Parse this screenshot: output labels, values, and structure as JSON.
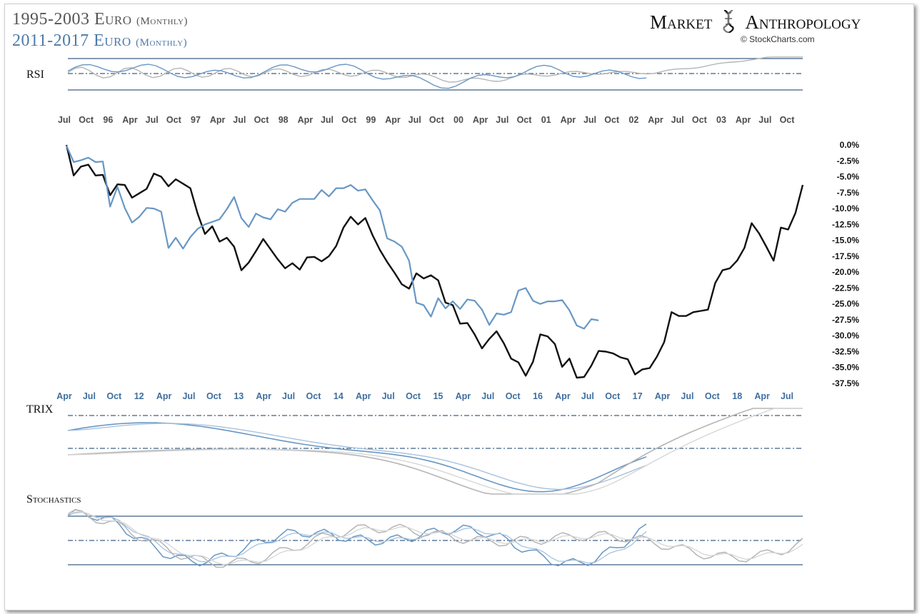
{
  "title_1": "1995-2003 Euro",
  "title_1_sub": "(Monthly)",
  "title_2": "2011-2017  Euro",
  "title_2_sub": "(Monthly)",
  "brand_left": "Market",
  "brand_right": "Anthropology",
  "credit": "© StockCharts.com",
  "panels": {
    "rsi": "RSI",
    "trix": "TRIX",
    "stochastics": "Stochastics"
  },
  "colors": {
    "black_series": "#111111",
    "blue_series": "#6897c4",
    "grid_line": "#3d5f85",
    "top_axis_text": "#4d4d4d",
    "bottom_axis_text": "#3f6e9e",
    "gray_indicator": "#b5b5b5"
  },
  "chart_data": [
    {
      "type": "line",
      "title": "",
      "xlabel": "",
      "ylabel": "",
      "ylim": [
        -37.5,
        0
      ],
      "yticks": [
        "0.0%",
        "-2.5%",
        "-5.0%",
        "-7.5%",
        "-10.0%",
        "-12.5%",
        "-15.0%",
        "-17.5%",
        "-20.0%",
        "-22.5%",
        "-25.0%",
        "-27.5%",
        "-30.0%",
        "-32.5%",
        "-35.0%",
        "-37.5%"
      ],
      "x_top_ticks": [
        "Jul",
        "Oct",
        "96",
        "Apr",
        "Jul",
        "Oct",
        "97",
        "Apr",
        "Jul",
        "Oct",
        "98",
        "Apr",
        "Jul",
        "Oct",
        "99",
        "Apr",
        "Jul",
        "Oct",
        "00",
        "Apr",
        "Jul",
        "Oct",
        "01",
        "Apr",
        "Jul",
        "Oct",
        "02",
        "Apr",
        "Jul",
        "Oct",
        "03",
        "Apr",
        "Jul",
        "Oct"
      ],
      "x_bottom_ticks": [
        "Apr",
        "Jul",
        "Oct",
        "12",
        "Apr",
        "Jul",
        "Oct",
        "13",
        "Apr",
        "Jul",
        "Oct",
        "14",
        "Apr",
        "Jul",
        "Oct",
        "15",
        "Apr",
        "Jul",
        "Oct",
        "16",
        "Apr",
        "Jul",
        "Oct",
        "17",
        "Apr",
        "Jul",
        "Oct",
        "18",
        "Apr",
        "Jul"
      ],
      "series": [
        {
          "name": "1995-2003 Euro",
          "color": "#111111",
          "values": [
            0,
            -4.8,
            -3.4,
            -3.1,
            -4.8,
            -4.7,
            -7.9,
            -6.2,
            -6.3,
            -8.3,
            -7.6,
            -6.9,
            -4.5,
            -5.0,
            -6.5,
            -5.4,
            -6.1,
            -6.8,
            -10.8,
            -14.0,
            -12.8,
            -15.2,
            -14.6,
            -16.0,
            -19.7,
            -18.5,
            -16.7,
            -14.8,
            -16.4,
            -18.0,
            -19.4,
            -18.6,
            -19.6,
            -17.7,
            -17.6,
            -18.3,
            -17.5,
            -15.9,
            -13.0,
            -11.3,
            -12.5,
            -11.5,
            -14.2,
            -16.5,
            -18.4,
            -20.1,
            -21.9,
            -22.6,
            -20.2,
            -21.0,
            -20.5,
            -21.3,
            -24.8,
            -25.2,
            -28.1,
            -28.0,
            -29.8,
            -32.0,
            -30.5,
            -29.3,
            -31.2,
            -33.6,
            -34.2,
            -36.3,
            -34.1,
            -29.8,
            -30.1,
            -31.3,
            -34.9,
            -33.6,
            -36.6,
            -36.5,
            -34.7,
            -32.4,
            -32.5,
            -32.8,
            -33.4,
            -33.7,
            -36.1,
            -35.3,
            -35.1,
            -33.3,
            -31.0,
            -26.3,
            -26.9,
            -26.9,
            -26.3,
            -26.1,
            -25.9,
            -21.7,
            -19.7,
            -19.4,
            -18.2,
            -16.2,
            -12.3,
            -13.9,
            -16.0,
            -18.2,
            -13.0,
            -13.3,
            -10.7,
            -6.3
          ]
        },
        {
          "name": "2011-2017 Euro",
          "color": "#6897c4",
          "values": [
            -0.1,
            -2.7,
            -2.4,
            -2.0,
            -2.7,
            -2.6,
            -9.7,
            -6.6,
            -9.9,
            -12.2,
            -11.3,
            -9.9,
            -10.0,
            -10.5,
            -16.2,
            -14.6,
            -16.3,
            -14.5,
            -13.2,
            -12.5,
            -12.1,
            -11.7,
            -10.1,
            -8.2,
            -11.5,
            -12.9,
            -10.8,
            -11.4,
            -11.7,
            -10.1,
            -10.5,
            -9.1,
            -8.5,
            -8.5,
            -8.5,
            -7.1,
            -8.1,
            -6.8,
            -6.8,
            -6.3,
            -7.2,
            -7.0,
            -8.7,
            -10.3,
            -14.7,
            -15.2,
            -16.0,
            -18.2,
            -24.8,
            -25.2,
            -27.0,
            -24.1,
            -25.7,
            -24.6,
            -25.8,
            -24.3,
            -24.5,
            -25.9,
            -28.3,
            -26.5,
            -26.7,
            -26.3,
            -22.9,
            -22.5,
            -24.5,
            -25.0,
            -24.6,
            -24.6,
            -24.4,
            -26.0,
            -28.4,
            -28.9,
            -27.4,
            -27.6
          ]
        }
      ]
    },
    {
      "type": "line",
      "title": "RSI",
      "note": "indicator panel with reference levels"
    },
    {
      "type": "line",
      "title": "TRIX",
      "note": "indicator panel"
    },
    {
      "type": "line",
      "title": "Stochastics",
      "note": "indicator panel with reference levels"
    }
  ]
}
